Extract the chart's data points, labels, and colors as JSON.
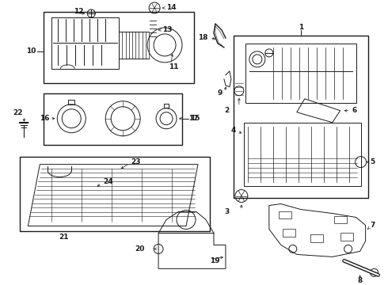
{
  "bg_color": "#ffffff",
  "line_color": "#1a1a1a",
  "fig_w": 4.9,
  "fig_h": 3.6,
  "dpi": 100,
  "lw": 0.7,
  "fs": 6.5
}
